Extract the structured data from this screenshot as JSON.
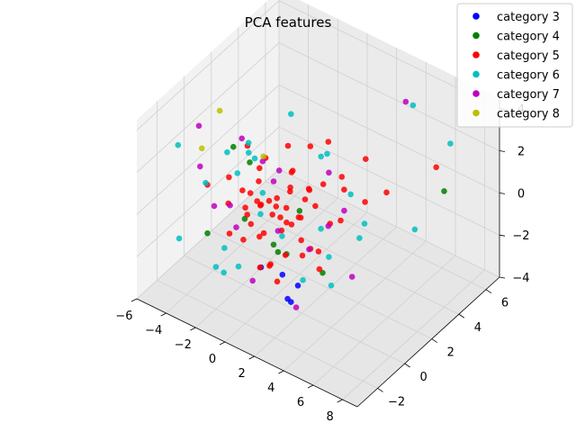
{
  "chart_data": {
    "type": "scatter3d",
    "title": "PCA features",
    "xlabel": "",
    "ylabel": "",
    "zlabel": "",
    "xlim": [
      -6,
      9
    ],
    "ylim": [
      -3.5,
      7
    ],
    "zlim": [
      -4,
      4.5
    ],
    "x_ticks": [
      -6,
      -4,
      -2,
      0,
      2,
      4,
      6,
      8
    ],
    "y_ticks": [
      -2,
      0,
      2,
      4,
      6
    ],
    "z_ticks": [
      -4,
      -2,
      0,
      2,
      4
    ],
    "x_tick_labels": [
      "−6",
      "−4",
      "−2",
      "0",
      "2",
      "4",
      "6",
      "8"
    ],
    "y_tick_labels": [
      "−2",
      "0",
      "2",
      "4",
      "6"
    ],
    "z_tick_labels": [
      "−4",
      "−2",
      "0",
      "2",
      "4"
    ],
    "grid": true,
    "legend_position": "top-right",
    "series": [
      {
        "name": "category 3",
        "color": "#0000ff",
        "points": [
          [
            1.5,
            -0.5,
            -3.2
          ],
          [
            0.5,
            0.2,
            -2.8
          ],
          [
            -0.5,
            -0.3,
            -2.5
          ],
          [
            1.0,
            0.8,
            -3.5
          ],
          [
            2.0,
            -0.8,
            -3.0
          ]
        ]
      },
      {
        "name": "category 4",
        "color": "#008000",
        "points": [
          [
            8.0,
            4.0,
            1.5
          ],
          [
            -4.5,
            2.0,
            0.5
          ],
          [
            -3.5,
            -1.0,
            -1.5
          ],
          [
            0.5,
            0.5,
            -2.0
          ],
          [
            -1.0,
            1.5,
            -3.0
          ],
          [
            1.0,
            -1.0,
            -0.5
          ],
          [
            -2.0,
            0.5,
            1.5
          ],
          [
            2.5,
            1.0,
            -2.5
          ],
          [
            -0.5,
            -1.5,
            0.5
          ],
          [
            0.0,
            2.0,
            -1.0
          ]
        ]
      },
      {
        "name": "category 5",
        "color": "#ff0000",
        "points": [
          [
            7.0,
            4.5,
            2.0
          ],
          [
            0.0,
            0.0,
            0.0
          ],
          [
            0.5,
            0.5,
            -0.5
          ],
          [
            -0.5,
            0.3,
            0.3
          ],
          [
            1.0,
            -0.5,
            0.5
          ],
          [
            -1.0,
            -0.5,
            -0.5
          ],
          [
            0.3,
            1.0,
            0.8
          ],
          [
            1.5,
            0.5,
            -1.0
          ],
          [
            -1.5,
            0.0,
            0.5
          ],
          [
            0.8,
            -1.0,
            -1.5
          ],
          [
            -0.8,
            1.2,
            -0.2
          ],
          [
            2.0,
            1.0,
            0.5
          ],
          [
            -2.0,
            -1.0,
            -1.0
          ],
          [
            0.0,
            1.5,
            1.2
          ],
          [
            1.2,
            0.0,
            1.5
          ],
          [
            -1.2,
            0.8,
            1.8
          ],
          [
            2.5,
            -0.5,
            -0.8
          ],
          [
            -2.5,
            0.5,
            0.0
          ],
          [
            0.5,
            -1.5,
            0.0
          ],
          [
            1.8,
            1.8,
            1.0
          ],
          [
            -0.3,
            -0.8,
            1.0
          ],
          [
            0.7,
            0.2,
            -1.8
          ],
          [
            -1.7,
            -0.3,
            -1.6
          ],
          [
            2.2,
            0.3,
            1.8
          ],
          [
            3.0,
            1.0,
            0.0
          ],
          [
            -3.0,
            0.0,
            -0.5
          ],
          [
            0.2,
            2.2,
            -0.5
          ],
          [
            1.0,
            -2.0,
            -1.0
          ],
          [
            -0.6,
            1.8,
            2.0
          ],
          [
            2.8,
            2.0,
            -0.5
          ],
          [
            3.5,
            1.5,
            1.5
          ],
          [
            4.0,
            2.5,
            0.5
          ],
          [
            -3.5,
            -1.0,
            0.8
          ],
          [
            0.0,
            -2.0,
            1.5
          ],
          [
            1.5,
            2.5,
            2.5
          ],
          [
            -1.0,
            2.5,
            0.2
          ],
          [
            2.0,
            -1.5,
            0.8
          ],
          [
            -2.2,
            1.5,
            -1.2
          ],
          [
            0.4,
            0.6,
            0.1
          ],
          [
            -0.4,
            -0.2,
            -0.9
          ],
          [
            1.1,
            0.9,
            -0.3
          ],
          [
            -1.3,
            0.4,
            0.9
          ],
          [
            0.9,
            -0.7,
            1.1
          ],
          [
            -0.7,
            -1.1,
            0.4
          ],
          [
            1.6,
            0.2,
            0.3
          ],
          [
            -1.6,
            0.9,
            -0.6
          ],
          [
            0.1,
            1.3,
            -1.2
          ],
          [
            2.4,
            0.8,
            -1.4
          ],
          [
            -2.4,
            -0.6,
            1.3
          ],
          [
            3.2,
            0.0,
            -1.5
          ],
          [
            3.8,
            1.0,
            2.5
          ],
          [
            4.5,
            2.0,
            3.0
          ],
          [
            -0.2,
            0.0,
            -2.5
          ],
          [
            0.6,
            -0.3,
            -2.8
          ],
          [
            1.3,
            1.4,
            -2.0
          ],
          [
            -1.8,
            1.0,
            1.0
          ],
          [
            2.7,
            -0.2,
            2.2
          ],
          [
            0.0,
            2.8,
            1.6
          ],
          [
            5.0,
            3.0,
            1.0
          ],
          [
            -2.8,
            1.2,
            1.6
          ]
        ]
      },
      {
        "name": "category 6",
        "color": "#00bfbf",
        "points": [
          [
            7.5,
            5.0,
            3.0
          ],
          [
            -5.5,
            -1.0,
            2.0
          ],
          [
            -4.0,
            1.0,
            1.0
          ],
          [
            -5.0,
            0.5,
            -0.5
          ],
          [
            4.5,
            5.5,
            3.5
          ],
          [
            -2.0,
            -2.0,
            -2.0
          ],
          [
            2.0,
            2.0,
            -2.5
          ],
          [
            -3.0,
            1.5,
            1.5
          ],
          [
            3.0,
            -1.0,
            -1.5
          ],
          [
            -1.0,
            -1.5,
            2.5
          ],
          [
            1.0,
            2.5,
            -1.8
          ],
          [
            -2.5,
            2.0,
            -1.0
          ],
          [
            2.5,
            -2.0,
            1.0
          ],
          [
            0.0,
            -2.5,
            -1.0
          ],
          [
            4.0,
            0.0,
            -2.0
          ],
          [
            -4.5,
            -2.0,
            -1.5
          ],
          [
            3.5,
            3.0,
            -1.0
          ],
          [
            -3.5,
            2.5,
            0.0
          ],
          [
            1.5,
            -2.5,
            2.0
          ],
          [
            -1.5,
            3.0,
            2.5
          ],
          [
            5.0,
            1.0,
            0.0
          ],
          [
            0.5,
            3.5,
            1.0
          ],
          [
            -0.5,
            -3.0,
            0.0
          ],
          [
            2.2,
            1.2,
            2.8
          ],
          [
            -2.2,
            -1.2,
            -2.8
          ],
          [
            6.0,
            4.0,
            -1.0
          ],
          [
            -1.8,
            0.2,
            2.2
          ],
          [
            3.3,
            2.2,
            0.8
          ]
        ]
      },
      {
        "name": "category 7",
        "color": "#bf00bf",
        "points": [
          [
            4.0,
            5.5,
            3.5
          ],
          [
            -5.0,
            0.0,
            2.5
          ],
          [
            -4.0,
            -1.0,
            1.5
          ],
          [
            3.0,
            -1.5,
            -2.5
          ],
          [
            -3.0,
            1.0,
            2.0
          ],
          [
            2.0,
            2.0,
            1.5
          ],
          [
            -2.0,
            -0.5,
            -1.0
          ],
          [
            1.0,
            -1.0,
            2.5
          ],
          [
            -1.0,
            1.5,
            -2.0
          ],
          [
            0.0,
            0.5,
            1.8
          ],
          [
            2.5,
            0.0,
            -0.8
          ],
          [
            -2.5,
            2.0,
            0.5
          ],
          [
            1.5,
            2.5,
            -1.5
          ],
          [
            -1.5,
            -1.5,
            0.8
          ],
          [
            0.5,
            -2.0,
            -1.8
          ],
          [
            -3.5,
            -0.5,
            -0.5
          ],
          [
            3.5,
            1.5,
            0.5
          ],
          [
            4.5,
            1.0,
            -2.0
          ]
        ]
      },
      {
        "name": "category 8",
        "color": "#bfbf00",
        "points": [
          [
            -4.5,
            1.0,
            2.8
          ],
          [
            -4.8,
            0.0,
            1.5
          ],
          [
            -2.0,
            1.5,
            1.2
          ]
        ]
      }
    ]
  }
}
